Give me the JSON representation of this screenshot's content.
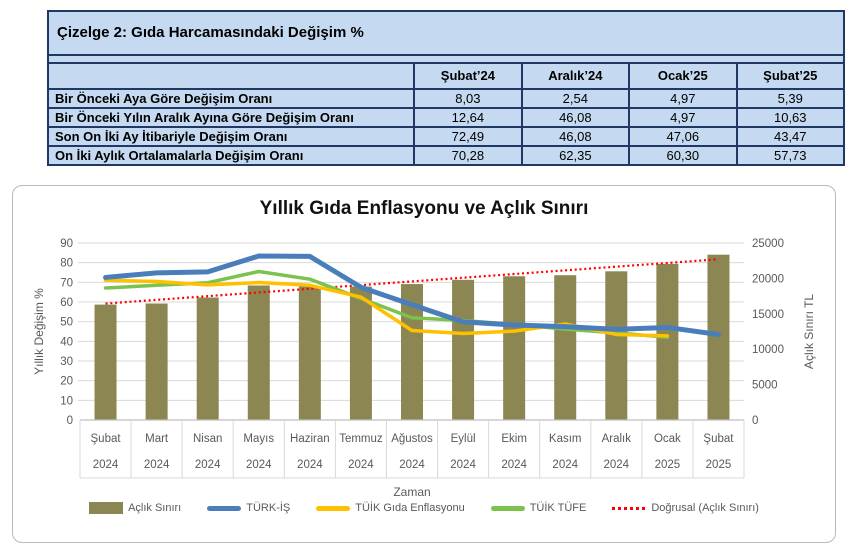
{
  "table": {
    "title": "Çizelge 2: Gıda Harcamasındaki Değişim %",
    "columns": [
      "Şubat’24",
      "Aralık’24",
      "Ocak’25",
      "Şubat’25"
    ],
    "rows": [
      {
        "label": "Bir Önceki Aya Göre Değişim Oranı",
        "values": [
          "8,03",
          "2,54",
          "4,97",
          "5,39"
        ]
      },
      {
        "label": "Bir Önceki Yılın Aralık Ayına Göre Değişim Oranı",
        "values": [
          "12,64",
          "46,08",
          "4,97",
          "10,63"
        ]
      },
      {
        "label": "Son On İki Ay İtibariyle Değişim Oranı",
        "values": [
          "72,49",
          "46,08",
          "47,06",
          "43,47"
        ]
      },
      {
        "label": "On İki Aylık Ortalamalarla Değişim Oranı",
        "values": [
          "70,28",
          "62,35",
          "60,30",
          "57,73"
        ]
      }
    ]
  },
  "chart_data": {
    "type": "combo-bar-line",
    "title": "Yıllık Gıda Enflasyonu ve Açlık Sınırı",
    "xlabel": "Zaman",
    "ylabel_left": "Yıllık Değişim %",
    "ylabel_right": "Açlık Sınırı TL",
    "ylim_left": [
      0,
      90
    ],
    "ylim_right": [
      0,
      25000
    ],
    "yticks_left": [
      0,
      10,
      20,
      30,
      40,
      50,
      60,
      70,
      80,
      90
    ],
    "yticks_right": [
      0,
      5000,
      10000,
      15000,
      20000,
      25000
    ],
    "grid": true,
    "legend_position": "bottom",
    "categories_month": [
      "Şubat",
      "Mart",
      "Nisan",
      "Mayıs",
      "Haziran",
      "Temmuz",
      "Ağustos",
      "Eylül",
      "Ekim",
      "Kasım",
      "Aralık",
      "Ocak",
      "Şubat"
    ],
    "categories_year": [
      "2024",
      "2024",
      "2024",
      "2024",
      "2024",
      "2024",
      "2024",
      "2024",
      "2024",
      "2024",
      "2024",
      "2025",
      "2025"
    ],
    "bar_series": {
      "name": "Açlık Sınırı",
      "axis": "right",
      "color": "#8C8652",
      "values": [
        16300,
        16450,
        17300,
        19000,
        18900,
        18850,
        19200,
        19800,
        20300,
        20450,
        21000,
        22050,
        23350
      ]
    },
    "line_series": [
      {
        "name": "TÜRK-İŞ",
        "axis": "left",
        "color": "#4A7EBB",
        "width": 5,
        "values": [
          72.49,
          74.8,
          75.3,
          83.4,
          83.2,
          67.5,
          58.6,
          49.9,
          48.3,
          47.5,
          46.08,
          47.06,
          43.47
        ]
      },
      {
        "name": "TÜİK Gıda Enflasyonu",
        "axis": "left",
        "color": "#FFC000",
        "width": 3.5,
        "values": [
          71.1,
          70.4,
          68.7,
          69.9,
          68.5,
          62.5,
          45.5,
          44.0,
          45.2,
          48.8,
          43.5,
          42.8,
          null
        ]
      },
      {
        "name": "TÜİK TÜFE",
        "axis": "left",
        "color": "#7CC24D",
        "width": 3.5,
        "values": [
          67.1,
          68.5,
          69.8,
          75.5,
          71.6,
          61.8,
          52.0,
          50.6,
          48.6,
          46.2,
          44.3,
          42.1,
          null
        ]
      }
    ],
    "trendline": {
      "name": "Doğrusal (Açlık Sınırı)",
      "axis": "right",
      "color": "#FF0000",
      "style": "dotted",
      "start": 16450,
      "end": 22700
    },
    "legend_items": [
      {
        "label": "Açlık Sınırı",
        "type": "bar",
        "color": "#8C8652"
      },
      {
        "label": "TÜRK-İŞ",
        "type": "line",
        "color": "#4A7EBB"
      },
      {
        "label": "TÜİK Gıda Enflasyonu",
        "type": "line",
        "color": "#FFC000"
      },
      {
        "label": "TÜİK TÜFE",
        "type": "line",
        "color": "#7CC24D"
      },
      {
        "label": "Doğrusal (Açlık Sınırı)",
        "type": "dotted",
        "color": "#FF0000"
      }
    ],
    "style_colors": {
      "grid": "#D9D9D9",
      "axis_line": "#BFBFBF",
      "axis_text": "#595959",
      "table_bg": "#C5DAF0",
      "table_border": "#1F3864"
    }
  }
}
